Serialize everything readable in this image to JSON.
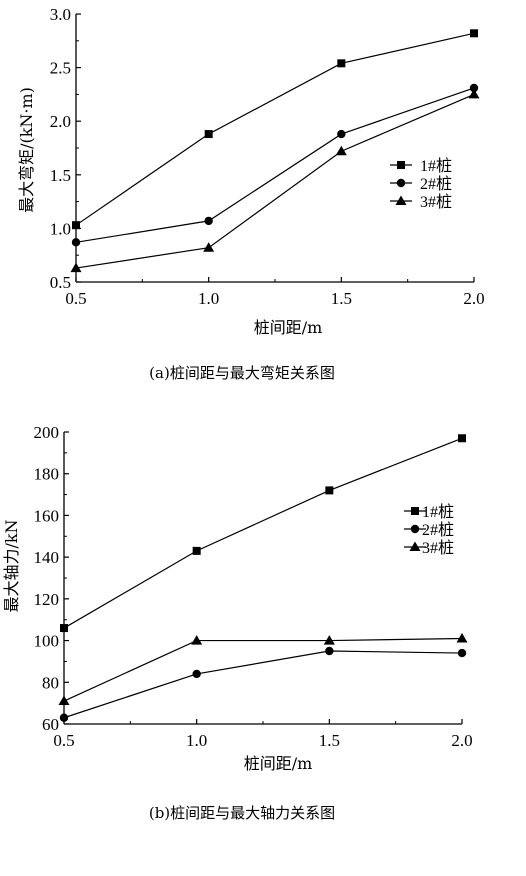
{
  "chart_data": [
    {
      "type": "line",
      "caption": "(a)桩间距与最大弯矩关系图",
      "xlabel": "桩间距/m",
      "ylabel": "最大弯矩/(kN·m)",
      "x": [
        0.5,
        1.0,
        1.5,
        2.0
      ],
      "xlim": [
        0.5,
        2.0
      ],
      "ylim": [
        0.5,
        3.0
      ],
      "xticks": [
        "0.5",
        "1.0",
        "1.5",
        "2.0"
      ],
      "yticks": [
        "0.5",
        "1.0",
        "1.5",
        "2.0",
        "2.5",
        "3.0"
      ],
      "legend_position": "right",
      "grid": false,
      "series": [
        {
          "name": "1#桩",
          "marker": "square",
          "values": [
            1.03,
            1.88,
            2.54,
            2.82
          ]
        },
        {
          "name": "2#桩",
          "marker": "circle",
          "values": [
            0.87,
            1.07,
            1.88,
            2.31
          ]
        },
        {
          "name": "3#桩",
          "marker": "triangle",
          "values": [
            0.63,
            0.82,
            1.72,
            2.25
          ]
        }
      ]
    },
    {
      "type": "line",
      "caption": "(b)桩间距与最大轴力关系图",
      "xlabel": "桩间距/m",
      "ylabel": "最大轴力/kN",
      "x": [
        0.5,
        1.0,
        1.5,
        2.0
      ],
      "xlim": [
        0.5,
        2.0
      ],
      "ylim": [
        60,
        200
      ],
      "xticks": [
        "0.5",
        "1.0",
        "1.5",
        "2.0"
      ],
      "yticks": [
        "60",
        "80",
        "100",
        "120",
        "140",
        "160",
        "180",
        "200"
      ],
      "legend_position": "right",
      "grid": false,
      "series": [
        {
          "name": "1#桩",
          "marker": "square",
          "values": [
            106,
            143,
            172,
            197
          ]
        },
        {
          "name": "2#桩",
          "marker": "circle",
          "values": [
            63,
            84,
            95,
            94
          ]
        },
        {
          "name": "3#桩",
          "marker": "triangle",
          "values": [
            71,
            100,
            100,
            101
          ]
        }
      ]
    }
  ]
}
